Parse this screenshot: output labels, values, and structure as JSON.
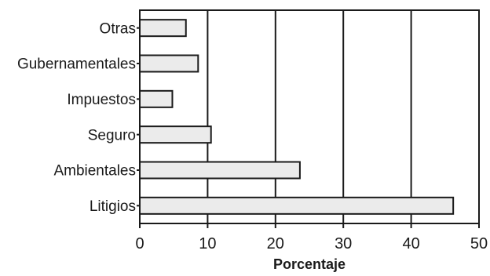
{
  "chart_data": {
    "type": "bar",
    "orientation": "horizontal",
    "categories": [
      "Otras",
      "Gubernamentales",
      "Impuestos",
      "Seguro",
      "Ambientales",
      "Litigios"
    ],
    "values": [
      6.8,
      8.6,
      4.8,
      10.5,
      23.6,
      46.2
    ],
    "title": "",
    "xlabel": "Porcentaje",
    "ylabel": "",
    "xlim": [
      0,
      50
    ],
    "xticks": [
      0,
      10,
      20,
      30,
      40,
      50
    ],
    "grid": "vertical",
    "bar_color": "#ebebeb",
    "bar_edge_color": "#1a1a1a"
  }
}
